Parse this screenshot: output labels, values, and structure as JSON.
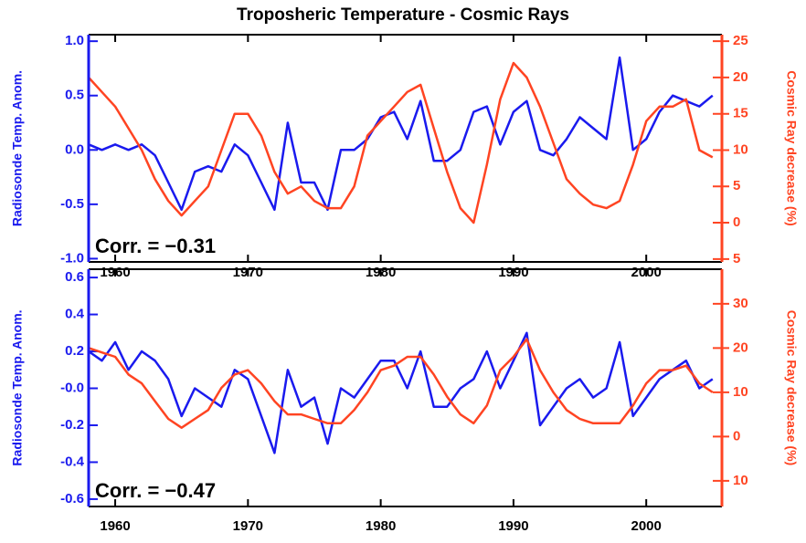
{
  "chart_data": [
    {
      "type": "line",
      "title": "Troposheric Temperature - Cosmic Rays",
      "ylabel": "Radiosonde Temp. Anom.",
      "y2label": "Cosmic Ray decrease (%)",
      "annotation": "Corr. = −0.31",
      "x": [
        1958,
        1959,
        1960,
        1961,
        1962,
        1963,
        1964,
        1965,
        1966,
        1967,
        1968,
        1969,
        1970,
        1971,
        1972,
        1973,
        1974,
        1975,
        1976,
        1977,
        1978,
        1979,
        1980,
        1981,
        1982,
        1983,
        1984,
        1985,
        1986,
        1987,
        1988,
        1989,
        1990,
        1991,
        1992,
        1993,
        1994,
        1995,
        1996,
        1997,
        1998,
        1999,
        2000,
        2001,
        2002,
        2003,
        2004,
        2005
      ],
      "xlim": [
        1958,
        2005.7
      ],
      "xticks": [
        1960,
        1970,
        1980,
        1990,
        2000
      ],
      "ylim": [
        -1.03,
        1.06
      ],
      "yticks": [
        {
          "value": -1,
          "label": "-1.0"
        },
        -0.5,
        {
          "value": 0,
          "label": "0.0"
        },
        0.5,
        {
          "value": 1,
          "label": "1.0"
        }
      ],
      "y2lim": [
        -5.4,
        25.9
      ],
      "y2ticks": [
        {
          "value": -5,
          "label": "5"
        },
        0,
        5,
        10,
        15,
        20,
        25
      ],
      "series": [
        {
          "name": "Radiosonde Temp. Anom.",
          "color": "#1a1aee",
          "values": [
            0.05,
            0.0,
            0.05,
            0.0,
            0.05,
            -0.05,
            -0.3,
            -0.55,
            -0.2,
            -0.15,
            -0.2,
            0.05,
            -0.05,
            -0.3,
            -0.55,
            0.25,
            -0.3,
            -0.3,
            -0.55,
            0.0,
            0.0,
            0.1,
            0.3,
            0.35,
            0.1,
            0.45,
            -0.1,
            -0.1,
            0.0,
            0.35,
            0.4,
            0.05,
            0.35,
            0.45,
            0.0,
            -0.05,
            0.1,
            0.3,
            0.2,
            0.1,
            0.85,
            0.0,
            0.1,
            0.35,
            0.5,
            0.45,
            0.4,
            0.5
          ]
        },
        {
          "name": "Cosmic Ray decrease (%)",
          "color": "#ff4422",
          "axis": "y2",
          "values": [
            20,
            18,
            16,
            13,
            10,
            6,
            3,
            1,
            3,
            5,
            10,
            15,
            15,
            12,
            7,
            4,
            5,
            3,
            2,
            2,
            5,
            12,
            14,
            16,
            18,
            19,
            13,
            7,
            2,
            0,
            8,
            17,
            22,
            20,
            16,
            11,
            6,
            4,
            2.5,
            2,
            3,
            8,
            14,
            16,
            16,
            17,
            10,
            9
          ]
        }
      ]
    },
    {
      "type": "line",
      "ylabel": "Radiosonde Temp. Anom.",
      "y2label": "Cosmic Ray decrease (%)",
      "annotation": "Corr. = −0.47",
      "x": [
        1958,
        1959,
        1960,
        1961,
        1962,
        1963,
        1964,
        1965,
        1966,
        1967,
        1968,
        1969,
        1970,
        1971,
        1972,
        1973,
        1974,
        1975,
        1976,
        1977,
        1978,
        1979,
        1980,
        1981,
        1982,
        1983,
        1984,
        1985,
        1986,
        1987,
        1988,
        1989,
        1990,
        1991,
        1992,
        1993,
        1994,
        1995,
        1996,
        1997,
        1998,
        1999,
        2000,
        2001,
        2002,
        2003,
        2004,
        2005
      ],
      "xlim": [
        1958,
        2005.7
      ],
      "xticks": [
        1960,
        1970,
        1980,
        1990,
        2000
      ],
      "ylim": [
        -0.64,
        0.645
      ],
      "yticks": [
        -0.6,
        -0.4,
        -0.2,
        {
          "value": 0,
          "label": "-0.0"
        },
        0.2,
        0.4,
        0.6
      ],
      "y2lim": [
        -15.8,
        37.8
      ],
      "y2ticks": [
        {
          "value": -10,
          "label": "10"
        },
        0,
        10,
        20,
        30
      ],
      "series": [
        {
          "name": "Radiosonde Temp. Anom.",
          "color": "#1a1aee",
          "values": [
            0.2,
            0.15,
            0.25,
            0.1,
            0.2,
            0.15,
            0.05,
            -0.15,
            0.0,
            -0.05,
            -0.1,
            0.1,
            0.05,
            -0.15,
            -0.35,
            0.1,
            -0.1,
            -0.05,
            -0.3,
            0.0,
            -0.05,
            0.05,
            0.15,
            0.15,
            0.0,
            0.2,
            -0.1,
            -0.1,
            0.0,
            0.05,
            0.2,
            0.0,
            0.15,
            0.3,
            -0.2,
            -0.1,
            0.0,
            0.05,
            -0.05,
            0.0,
            0.25,
            -0.15,
            -0.05,
            0.05,
            0.1,
            0.15,
            0.0,
            0.05
          ]
        },
        {
          "name": "Cosmic Ray decrease (%)",
          "color": "#ff4422",
          "axis": "y2",
          "values": [
            20,
            19,
            18,
            14,
            12,
            8,
            4,
            2,
            4,
            6,
            11,
            14,
            15,
            12,
            8,
            5,
            5,
            4,
            3,
            3,
            6,
            10,
            15,
            16,
            18,
            18,
            14,
            9,
            5,
            3,
            7,
            15,
            18,
            22,
            15,
            10,
            6,
            4,
            3,
            3,
            3,
            7,
            12,
            15,
            15,
            16,
            12,
            10
          ]
        }
      ]
    }
  ]
}
